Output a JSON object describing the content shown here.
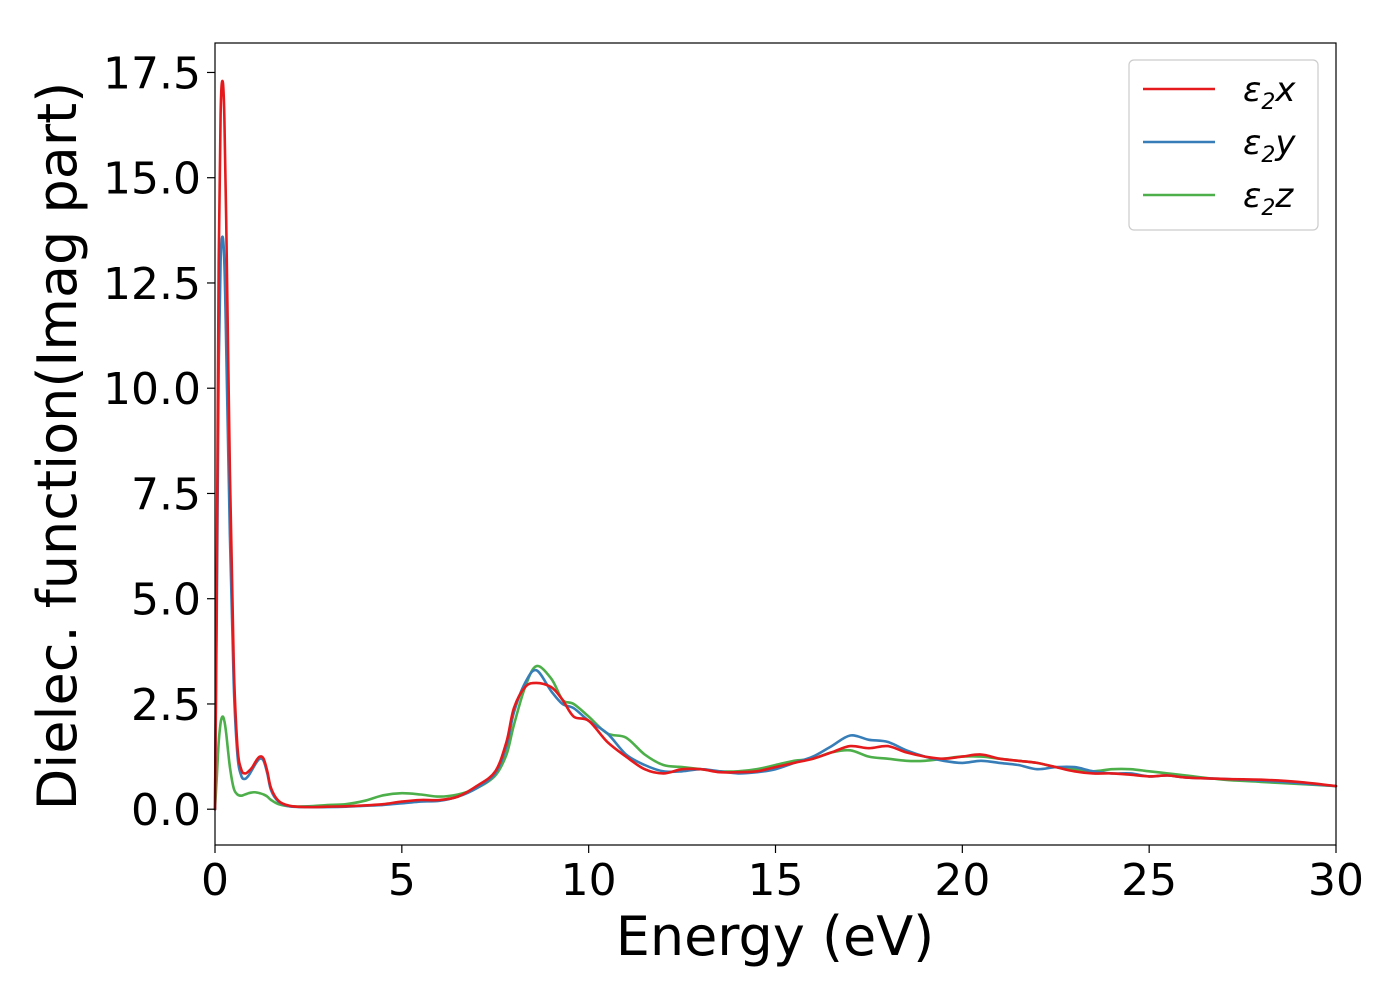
{
  "chart_data": {
    "type": "line",
    "title": "",
    "xlabel": "Energy (eV)",
    "ylabel": "Dielec. function(Imag part)",
    "xlim": [
      0,
      30
    ],
    "ylim": [
      -0.85,
      18.2
    ],
    "xticks": [
      0,
      5,
      10,
      15,
      20,
      25,
      30
    ],
    "xtick_labels": [
      "0",
      "5",
      "10",
      "15",
      "20",
      "25",
      "30"
    ],
    "yticks": [
      0.0,
      2.5,
      5.0,
      7.5,
      10.0,
      12.5,
      15.0,
      17.5
    ],
    "ytick_labels": [
      "0.0",
      "2.5",
      "5.0",
      "7.5",
      "10.0",
      "12.5",
      "15.0",
      "17.5"
    ],
    "grid": false,
    "legend_position": "top-right",
    "series": [
      {
        "name": "ε2x",
        "legend_main": "ε",
        "legend_sub": "2",
        "legend_tail": "x",
        "color": "#e41a1c",
        "x": [
          0,
          0.05,
          0.1,
          0.15,
          0.2,
          0.25,
          0.3,
          0.4,
          0.5,
          0.6,
          0.7,
          0.8,
          0.9,
          1.0,
          1.1,
          1.2,
          1.3,
          1.4,
          1.5,
          1.7,
          2.0,
          2.5,
          3.0,
          3.5,
          4.0,
          4.5,
          5.0,
          5.5,
          6.0,
          6.5,
          7.0,
          7.5,
          7.8,
          8.0,
          8.3,
          8.6,
          9.0,
          9.3,
          9.6,
          10.0,
          10.5,
          11.0,
          11.5,
          12.0,
          12.5,
          13.0,
          13.5,
          14.0,
          14.5,
          15.0,
          15.5,
          16.0,
          16.5,
          17.0,
          17.5,
          18.0,
          18.5,
          19.0,
          19.5,
          20.0,
          20.5,
          21.0,
          21.5,
          22.0,
          22.5,
          23.0,
          23.5,
          24.0,
          24.5,
          25.0,
          25.5,
          26.0,
          27.0,
          28.0,
          29.0,
          30.0
        ],
        "y": [
          0.0,
          6.0,
          13.0,
          16.5,
          17.3,
          16.5,
          14.0,
          8.0,
          3.5,
          1.5,
          0.95,
          0.85,
          0.9,
          1.0,
          1.15,
          1.25,
          1.2,
          0.9,
          0.5,
          0.2,
          0.08,
          0.05,
          0.06,
          0.07,
          0.09,
          0.12,
          0.18,
          0.22,
          0.22,
          0.3,
          0.55,
          0.9,
          1.6,
          2.4,
          2.9,
          3.0,
          2.9,
          2.6,
          2.2,
          2.1,
          1.6,
          1.25,
          0.95,
          0.85,
          0.95,
          0.95,
          0.88,
          0.88,
          0.9,
          1.0,
          1.1,
          1.2,
          1.35,
          1.5,
          1.45,
          1.5,
          1.35,
          1.25,
          1.2,
          1.25,
          1.3,
          1.2,
          1.15,
          1.1,
          1.0,
          0.9,
          0.85,
          0.85,
          0.82,
          0.78,
          0.8,
          0.75,
          0.72,
          0.7,
          0.65,
          0.55
        ]
      },
      {
        "name": "ε2y",
        "legend_main": "ε",
        "legend_sub": "2",
        "legend_tail": "y",
        "color": "#377eb8",
        "x": [
          0,
          0.05,
          0.1,
          0.15,
          0.2,
          0.25,
          0.3,
          0.4,
          0.5,
          0.6,
          0.7,
          0.8,
          0.9,
          1.0,
          1.1,
          1.2,
          1.3,
          1.4,
          1.5,
          1.7,
          2.0,
          2.5,
          3.0,
          3.5,
          4.0,
          4.5,
          5.0,
          5.5,
          6.0,
          6.5,
          7.0,
          7.5,
          7.8,
          8.0,
          8.3,
          8.6,
          9.0,
          9.3,
          9.6,
          10.0,
          10.5,
          11.0,
          11.5,
          12.0,
          12.5,
          13.0,
          13.5,
          14.0,
          14.5,
          15.0,
          15.5,
          16.0,
          16.5,
          17.0,
          17.5,
          18.0,
          18.5,
          19.0,
          19.5,
          20.0,
          20.5,
          21.0,
          21.5,
          22.0,
          22.5,
          23.0,
          23.5,
          24.0,
          24.5,
          25.0,
          25.5,
          26.0,
          27.0,
          28.0,
          29.0,
          30.0
        ],
        "y": [
          0.0,
          5.0,
          10.5,
          13.0,
          13.6,
          13.0,
          11.0,
          6.5,
          3.0,
          1.3,
          0.8,
          0.72,
          0.8,
          0.95,
          1.1,
          1.2,
          1.15,
          0.85,
          0.45,
          0.18,
          0.07,
          0.05,
          0.05,
          0.06,
          0.08,
          0.1,
          0.14,
          0.18,
          0.2,
          0.3,
          0.5,
          0.85,
          1.5,
          2.3,
          3.0,
          3.3,
          2.8,
          2.5,
          2.4,
          2.1,
          1.8,
          1.3,
          1.05,
          0.9,
          0.9,
          0.95,
          0.9,
          0.85,
          0.88,
          0.95,
          1.1,
          1.25,
          1.5,
          1.75,
          1.65,
          1.6,
          1.4,
          1.25,
          1.15,
          1.1,
          1.15,
          1.1,
          1.05,
          0.95,
          1.0,
          1.0,
          0.9,
          0.85,
          0.85,
          0.78,
          0.8,
          0.75,
          0.72,
          0.68,
          0.62,
          0.55
        ]
      },
      {
        "name": "ε2z",
        "legend_main": "ε",
        "legend_sub": "2",
        "legend_tail": "z",
        "color": "#4daf4a",
        "x": [
          0,
          0.05,
          0.1,
          0.15,
          0.2,
          0.25,
          0.3,
          0.4,
          0.5,
          0.6,
          0.7,
          0.8,
          0.9,
          1.0,
          1.1,
          1.2,
          1.3,
          1.4,
          1.5,
          1.7,
          2.0,
          2.5,
          3.0,
          3.5,
          4.0,
          4.5,
          5.0,
          5.5,
          6.0,
          6.5,
          7.0,
          7.5,
          7.8,
          8.0,
          8.3,
          8.6,
          9.0,
          9.3,
          9.6,
          10.0,
          10.5,
          11.0,
          11.5,
          12.0,
          12.5,
          13.0,
          13.5,
          14.0,
          14.5,
          15.0,
          15.5,
          16.0,
          16.5,
          17.0,
          17.5,
          18.0,
          18.5,
          19.0,
          19.5,
          20.0,
          20.5,
          21.0,
          21.5,
          22.0,
          22.5,
          23.0,
          23.5,
          24.0,
          24.5,
          25.0,
          25.5,
          26.0,
          27.0,
          28.0,
          29.0,
          30.0
        ],
        "y": [
          0.0,
          0.8,
          1.6,
          2.05,
          2.2,
          2.1,
          1.8,
          1.0,
          0.5,
          0.35,
          0.32,
          0.35,
          0.38,
          0.4,
          0.4,
          0.38,
          0.35,
          0.3,
          0.22,
          0.12,
          0.07,
          0.07,
          0.1,
          0.12,
          0.2,
          0.33,
          0.38,
          0.35,
          0.3,
          0.35,
          0.5,
          0.8,
          1.3,
          2.0,
          2.9,
          3.4,
          3.1,
          2.6,
          2.5,
          2.2,
          1.8,
          1.7,
          1.3,
          1.05,
          1.0,
          0.95,
          0.9,
          0.9,
          0.95,
          1.05,
          1.15,
          1.2,
          1.35,
          1.4,
          1.25,
          1.2,
          1.15,
          1.15,
          1.2,
          1.25,
          1.25,
          1.2,
          1.15,
          1.1,
          1.0,
          0.95,
          0.9,
          0.95,
          0.95,
          0.9,
          0.85,
          0.8,
          0.7,
          0.65,
          0.6,
          0.55
        ]
      }
    ]
  }
}
